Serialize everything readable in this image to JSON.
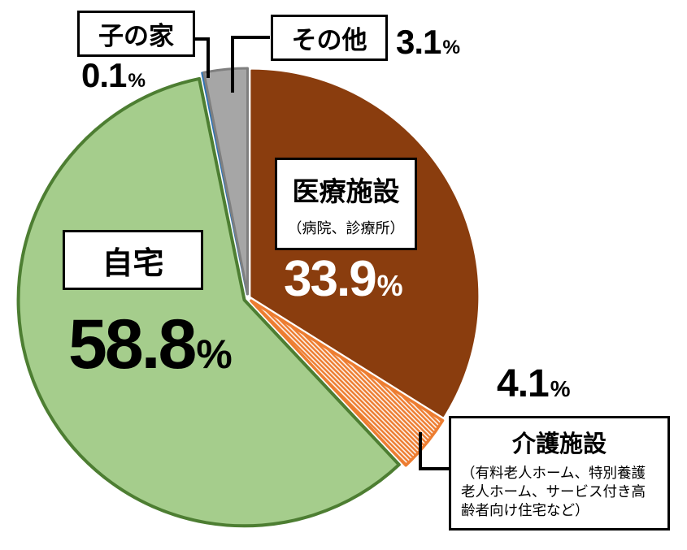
{
  "chart_data": {
    "type": "pie",
    "units": "%",
    "start_angle_deg": 0,
    "direction": "clockwise",
    "legend_position": "callouts",
    "slices": [
      {
        "key": "medical-facility",
        "name": "医療施設",
        "detail": "（病院、診療所）",
        "value": 33.9,
        "fill": "#8A3D0E",
        "border": "#8A3D0E",
        "label_color": "#ffffff"
      },
      {
        "key": "nursing-facility",
        "name": "介護施設",
        "detail": "（有料老人ホーム、特別養護老人ホーム、サービス付き高齢者向け住宅など）",
        "value": 4.1,
        "fill": "#ED7D31",
        "border": "#ED7D31",
        "hatch": true,
        "label_color": "#000000"
      },
      {
        "key": "home",
        "name": "自宅",
        "value": 58.8,
        "fill": "#A5CD8C",
        "border": "#4D7E32",
        "label_color": "#000000"
      },
      {
        "key": "childs-home",
        "name": "子の家",
        "value": 0.1,
        "fill": "#2E74B5",
        "border": "#2E74B5",
        "label_color": "#000000"
      },
      {
        "key": "other",
        "name": "その他",
        "value": 3.1,
        "fill": "#A6A6A6",
        "border": "#7F7F7F",
        "label_color": "#000000"
      }
    ]
  }
}
